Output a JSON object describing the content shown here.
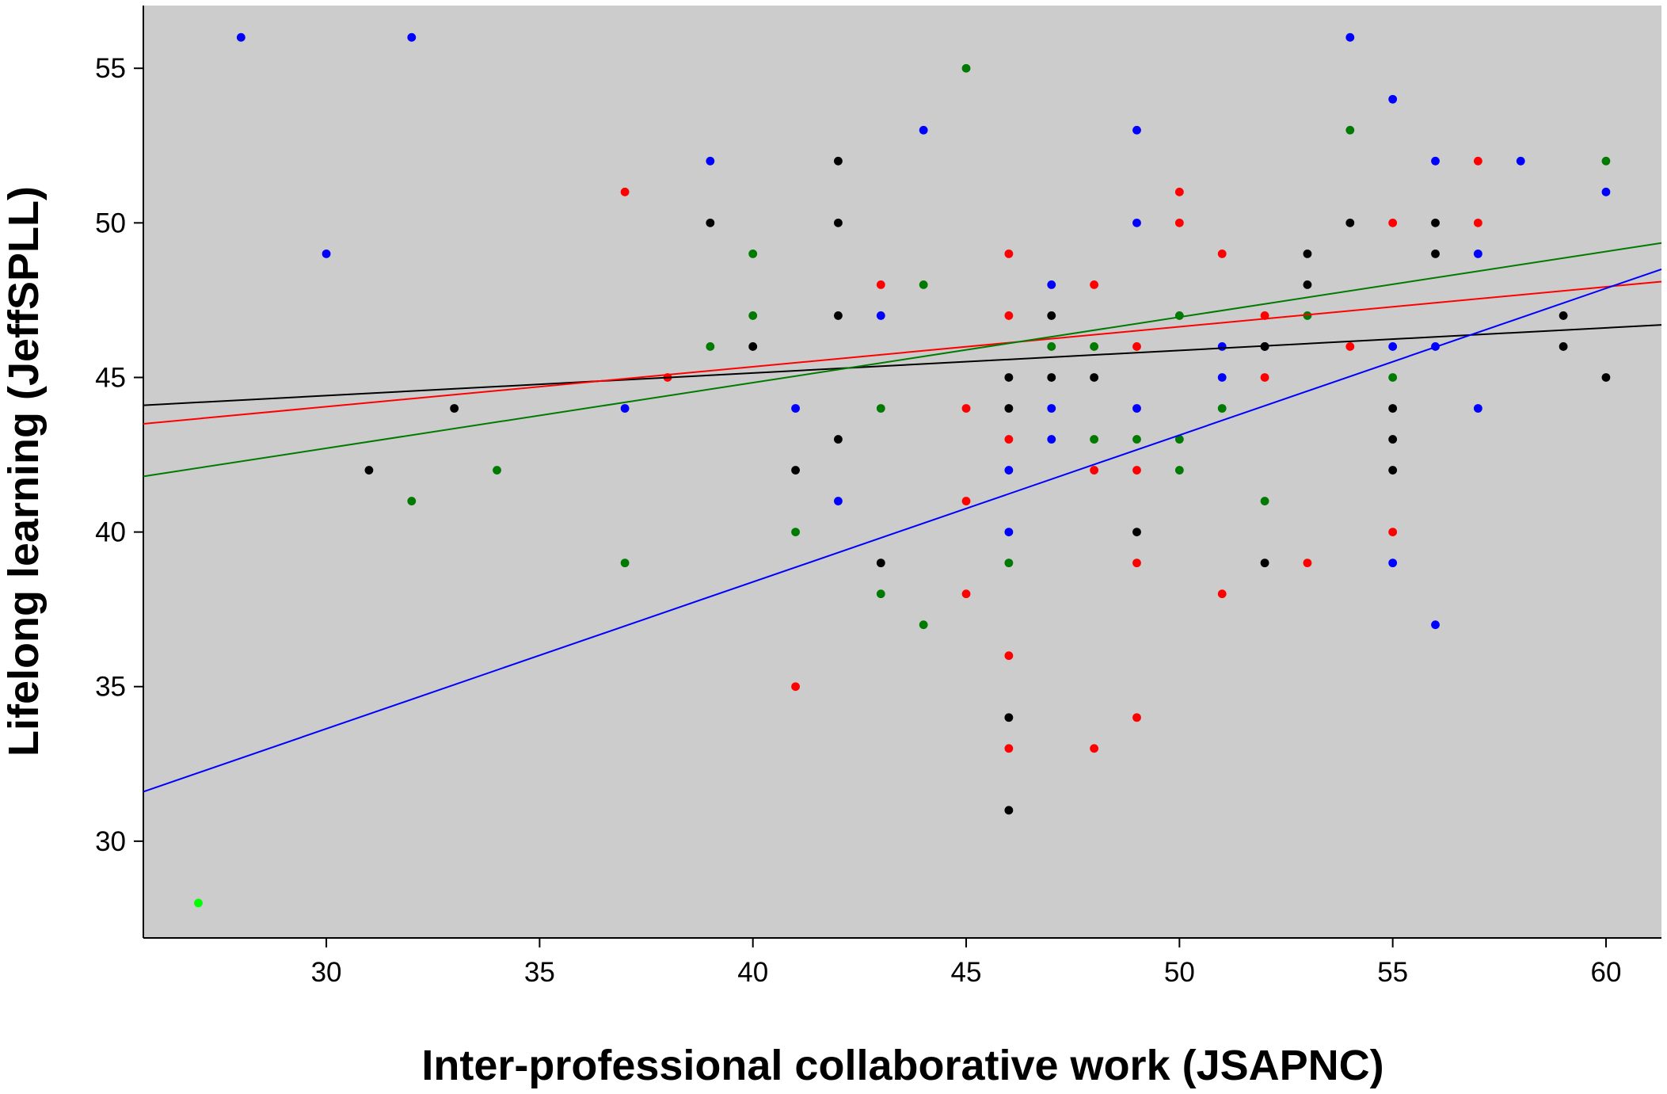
{
  "chart_data": {
    "type": "scatter",
    "x_label": "Inter-professional collaborative work (JSAPNC)",
    "y_label": "Lifelong learning (JeffSPLL)",
    "xlim": [
      25.71,
      61.3
    ],
    "ylim": [
      26.87,
      57.03
    ],
    "xticks": [
      30,
      35,
      40,
      45,
      50,
      55,
      60
    ],
    "yticks": [
      30,
      35,
      40,
      45,
      50,
      55
    ],
    "background": "#cccccc",
    "series": [
      {
        "color": "#0000ff",
        "x": [
          28,
          32,
          30,
          39,
          44,
          37,
          41,
          42,
          43,
          46,
          46,
          47,
          47,
          47,
          49,
          49,
          49,
          51,
          51,
          52,
          54,
          55,
          55,
          55,
          56,
          56,
          56,
          57,
          57,
          58,
          60
        ],
        "values": [
          56,
          56,
          49,
          52,
          53,
          44,
          44,
          41,
          47,
          42,
          40,
          48,
          44,
          43,
          53,
          50,
          44,
          46,
          45,
          46,
          56,
          54,
          46,
          39,
          52,
          46,
          37,
          49,
          44,
          52,
          51
        ]
      },
      {
        "color": "#ff0000",
        "x": [
          37,
          38,
          41,
          43,
          45,
          45,
          45,
          46,
          46,
          46,
          46,
          46,
          48,
          48,
          48,
          49,
          49,
          49,
          49,
          50,
          50,
          51,
          51,
          52,
          52,
          53,
          54,
          55,
          55,
          57,
          57
        ],
        "values": [
          51,
          45,
          35,
          48,
          44,
          41,
          38,
          49,
          47,
          43,
          36,
          33,
          48,
          42,
          33,
          46,
          42,
          39,
          34,
          51,
          50,
          49,
          38,
          47,
          45,
          39,
          46,
          50,
          40,
          52,
          50
        ]
      },
      {
        "color": "#000000",
        "x": [
          31,
          33,
          39,
          40,
          41,
          42,
          42,
          42,
          42,
          43,
          46,
          46,
          46,
          46,
          47,
          47,
          48,
          49,
          52,
          52,
          53,
          53,
          54,
          55,
          55,
          55,
          56,
          56,
          59,
          59,
          60
        ],
        "values": [
          42,
          44,
          50,
          46,
          42,
          52,
          50,
          47,
          43,
          39,
          45,
          44,
          34,
          31,
          47,
          45,
          45,
          40,
          46,
          39,
          49,
          48,
          50,
          44,
          43,
          42,
          50,
          49,
          47,
          46,
          45
        ]
      },
      {
        "color": "#007a00",
        "x": [
          32,
          34,
          37,
          39,
          40,
          40,
          41,
          43,
          43,
          44,
          44,
          45,
          46,
          47,
          48,
          48,
          49,
          50,
          50,
          50,
          51,
          52,
          53,
          54,
          55,
          60
        ],
        "values": [
          41,
          42,
          39,
          46,
          49,
          47,
          40,
          44,
          38,
          48,
          37,
          55,
          39,
          46,
          46,
          43,
          43,
          47,
          43,
          42,
          44,
          41,
          47,
          53,
          45,
          52
        ]
      },
      {
        "color": "#00ff00",
        "x": [
          27
        ],
        "values": [
          28
        ]
      }
    ],
    "fit_lines": [
      {
        "color": "#000000",
        "x": [
          25.71,
          61.3
        ],
        "values": [
          44.1,
          46.7
        ]
      },
      {
        "color": "#ff0000",
        "x": [
          25.71,
          61.3
        ],
        "values": [
          43.5,
          48.1
        ]
      },
      {
        "color": "#007a00",
        "x": [
          25.71,
          61.3
        ],
        "values": [
          41.8,
          49.35
        ]
      },
      {
        "color": "#0000ff",
        "x": [
          25.71,
          61.3
        ],
        "values": [
          31.6,
          48.5
        ]
      }
    ]
  }
}
